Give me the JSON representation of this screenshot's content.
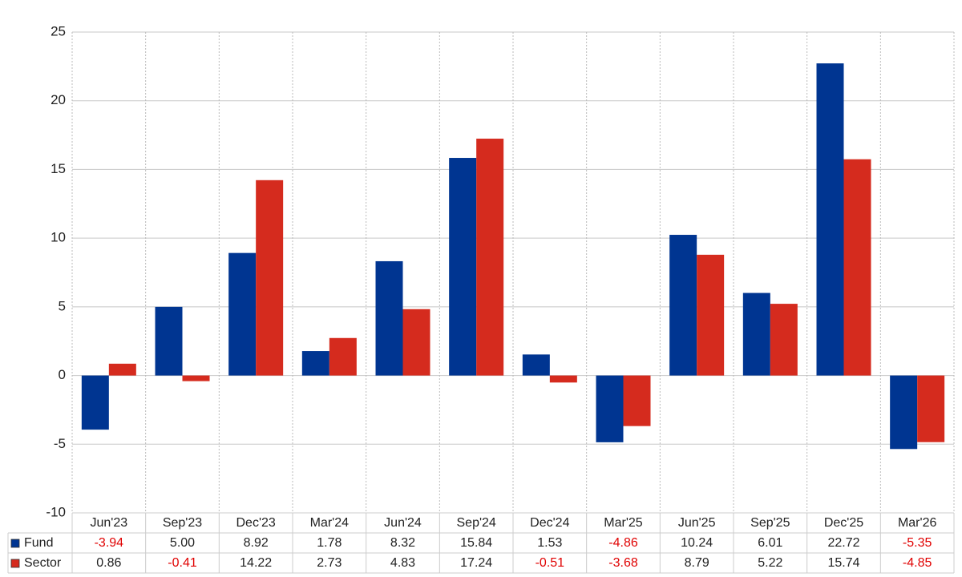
{
  "chart_data": {
    "type": "bar",
    "categories": [
      "Jun'23",
      "Sep'23",
      "Dec'23",
      "Mar'24",
      "Jun'24",
      "Sep'24",
      "Dec'24",
      "Mar'25",
      "Jun'25",
      "Sep'25",
      "Dec'25",
      "Mar'26"
    ],
    "series": [
      {
        "name": "Fund",
        "color": "#003591",
        "values": [
          -3.94,
          5,
          8.92,
          1.78,
          8.32,
          15.84,
          1.53,
          -4.86,
          10.24,
          6.01,
          22.72,
          -5.35
        ],
        "value_labels": [
          "-3.94",
          "5.00",
          "8.92",
          "1.78",
          "8.32",
          "15.84",
          "1.53",
          "-4.86",
          "10.24",
          "6.01",
          "22.72",
          "-5.35"
        ]
      },
      {
        "name": "Sector",
        "color": "#d52b1e",
        "values": [
          0.86,
          -0.41,
          14.22,
          2.73,
          4.83,
          17.24,
          -0.51,
          -3.68,
          8.79,
          5.22,
          15.74,
          -4.85
        ],
        "value_labels": [
          "0.86",
          "-0.41",
          "14.22",
          "2.73",
          "4.83",
          "17.24",
          "-0.51",
          "-3.68",
          "8.79",
          "5.22",
          "15.74",
          "-4.85"
        ]
      }
    ],
    "ylim": [
      -10,
      25
    ],
    "yticks": [
      -10,
      -5,
      0,
      5,
      10,
      15,
      20,
      25
    ],
    "grid": true,
    "negative_color": "#e00000"
  }
}
